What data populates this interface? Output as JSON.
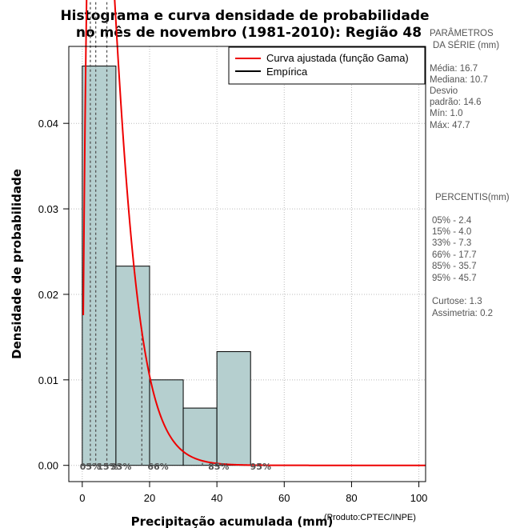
{
  "chart_data": {
    "type": "histogram",
    "title_lines": [
      "Histograma e curva densidade de probabilidade",
      "no mês de novembro (1981-2010): Região 48"
    ],
    "xlabel": "Precipitação acumulada (mm)",
    "ylabel": "Densidade de probabilidade",
    "credit": "(Produto:CPTEC/INPE)",
    "xlim": [
      -4,
      102
    ],
    "ylim": [
      -0.0019,
      0.049
    ],
    "x_ticks": [
      0,
      20,
      40,
      60,
      80,
      100
    ],
    "x_tick_labels": [
      "0",
      "20",
      "40",
      "60",
      "80",
      "100"
    ],
    "y_ticks": [
      0.0,
      0.01,
      0.02,
      0.03,
      0.04
    ],
    "y_tick_labels": [
      "0.00",
      "0.01",
      "0.02",
      "0.03",
      "0.04"
    ],
    "grid": true,
    "bins": [
      {
        "start": 0,
        "end": 10,
        "density": 0.0467
      },
      {
        "start": 10,
        "end": 20,
        "density": 0.0233
      },
      {
        "start": 20,
        "end": 30,
        "density": 0.01
      },
      {
        "start": 30,
        "end": 40,
        "density": 0.0067
      },
      {
        "start": 40,
        "end": 50,
        "density": 0.0133
      }
    ],
    "bar_color": "#b5cfcf",
    "gamma_fit": {
      "shape": 1.93,
      "rate": 0.2245,
      "x_start": 0.3,
      "x_end": 102
    },
    "curve_color": "#ee0000",
    "legend": [
      {
        "label": "Curva ajustada (função Gama)",
        "color": "#ee0000"
      },
      {
        "label": "Empírica",
        "color": "#000000"
      }
    ],
    "percentile_lines": [
      2.4,
      4.0,
      7.3,
      17.7,
      35.7,
      45.7
    ],
    "percentile_labels": [
      {
        "text": "05%",
        "x": 2.4
      },
      {
        "text": "15%",
        "x": 7.5
      },
      {
        "text": "33%",
        "x": 11.5
      },
      {
        "text": "66%",
        "x": 22.5
      },
      {
        "text": "85%",
        "x": 40.5
      },
      {
        "text": "95%",
        "x": 53
      }
    ]
  },
  "side_panel": {
    "params_heading": [
      "PARÂMETROS",
      "DA SÉRIE (mm)"
    ],
    "params": [
      "Média:  16.7",
      "Mediana:  10.7",
      "Desvio",
      "padrão:  14.6",
      "Mín:  1.0",
      "Máx:  47.7"
    ],
    "percentis_heading": "PERCENTIS(mm)",
    "percentis": [
      "05% -   2.4",
      "15% -   4.0",
      "33% -   7.3",
      "66% -   17.7",
      "85% -   35.7",
      "95% -   45.7"
    ],
    "curtose": "Curtose:  1.3",
    "assimetria": "Assimetria:  0.2"
  }
}
